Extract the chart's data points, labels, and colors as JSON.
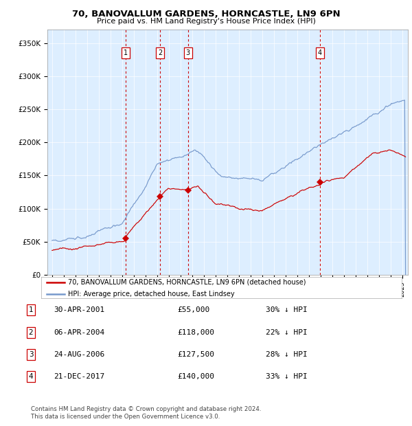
{
  "title": "70, BANOVALLUM GARDENS, HORNCASTLE, LN9 6PN",
  "subtitle": "Price paid vs. HM Land Registry's House Price Index (HPI)",
  "footer1": "Contains HM Land Registry data © Crown copyright and database right 2024.",
  "footer2": "This data is licensed under the Open Government Licence v3.0.",
  "legend_red": "70, BANOVALLUM GARDENS, HORNCASTLE, LN9 6PN (detached house)",
  "legend_blue": "HPI: Average price, detached house, East Lindsey",
  "background_color": "#ddeeff",
  "red_color": "#cc0000",
  "blue_color": "#7799cc",
  "yticks": [
    0,
    50000,
    100000,
    150000,
    200000,
    250000,
    300000,
    350000
  ],
  "ytick_labels": [
    "£0",
    "£50K",
    "£100K",
    "£150K",
    "£200K",
    "£250K",
    "£300K",
    "£350K"
  ],
  "xlim_start": 1994.6,
  "xlim_end": 2025.5,
  "ylim_bottom": 0,
  "ylim_top": 370000,
  "transactions": [
    {
      "num": 1,
      "date": "30-APR-2001",
      "year": 2001.33,
      "price": 55000
    },
    {
      "num": 2,
      "date": "06-APR-2004",
      "year": 2004.27,
      "price": 118000
    },
    {
      "num": 3,
      "date": "24-AUG-2006",
      "year": 2006.65,
      "price": 127500
    },
    {
      "num": 4,
      "date": "21-DEC-2017",
      "year": 2017.97,
      "price": 140000
    }
  ],
  "table_rows": [
    [
      "1",
      "30-APR-2001",
      "£55,000",
      "30% ↓ HPI"
    ],
    [
      "2",
      "06-APR-2004",
      "£118,000",
      "22% ↓ HPI"
    ],
    [
      "3",
      "24-AUG-2006",
      "£127,500",
      "28% ↓ HPI"
    ],
    [
      "4",
      "21-DEC-2017",
      "£140,000",
      "33% ↓ HPI"
    ]
  ]
}
